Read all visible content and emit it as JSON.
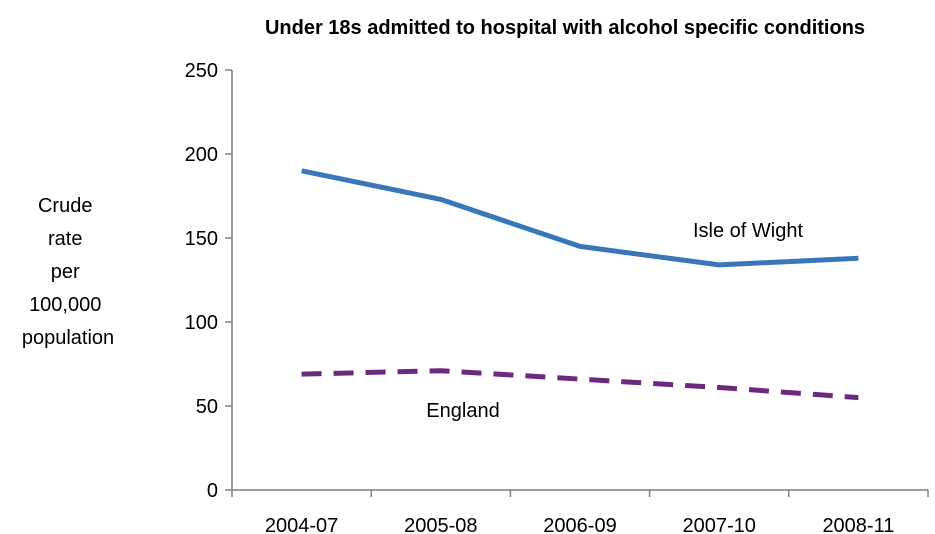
{
  "chart_data": {
    "type": "line",
    "title": "Under 18s admitted to hospital with alcohol specific conditions",
    "ylabel_lines": [
      "Crude",
      "rate",
      "per",
      "100,000",
      "population"
    ],
    "xlabel": "",
    "categories": [
      "2004-07",
      "2005-08",
      "2006-09",
      "2007-10",
      "2008-11"
    ],
    "y_ticks": [
      "0",
      "50",
      "100",
      "150",
      "200",
      "250"
    ],
    "ylim": [
      0,
      250
    ],
    "grid": false,
    "legend": "none (inline series labels)",
    "series": [
      {
        "name": "Isle of Wight",
        "values": [
          190,
          173,
          145,
          134,
          138
        ],
        "color": "#3a77b9",
        "style": "solid"
      },
      {
        "name": "England",
        "values": [
          69,
          71,
          66,
          61,
          55
        ],
        "color": "#6b2a7e",
        "style": "dashed"
      }
    ]
  }
}
